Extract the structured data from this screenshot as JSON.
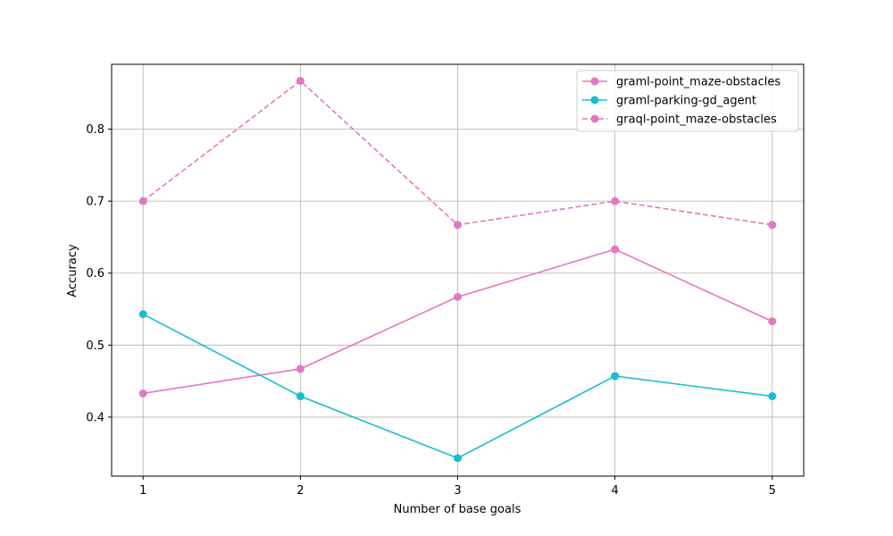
{
  "chart_data": {
    "type": "line",
    "title": "",
    "xlabel": "Number of base goals",
    "ylabel": "Accuracy",
    "x": [
      1,
      2,
      3,
      4,
      5
    ],
    "xticks": [
      "1",
      "2",
      "3",
      "4",
      "5"
    ],
    "yticks": [
      "0.4",
      "0.5",
      "0.6",
      "0.7",
      "0.8"
    ],
    "ylim": [
      0.318,
      0.89
    ],
    "xlim": [
      0.8,
      5.2
    ],
    "grid": true,
    "legend_position": "top-right",
    "series": [
      {
        "name": "graml-point_maze-obstacles",
        "values": [
          0.433,
          0.467,
          0.567,
          0.633,
          0.533
        ],
        "color": "#e377c2",
        "style": "solid",
        "marker": "circle"
      },
      {
        "name": "graml-parking-gd_agent",
        "values": [
          0.543,
          0.429,
          0.343,
          0.457,
          0.429
        ],
        "color": "#17becf",
        "style": "solid",
        "marker": "circle"
      },
      {
        "name": "graql-point_maze-obstacles",
        "values": [
          0.7,
          0.867,
          0.667,
          0.7,
          0.667
        ],
        "color": "#e377c2",
        "style": "dashed",
        "marker": "circle"
      }
    ]
  }
}
